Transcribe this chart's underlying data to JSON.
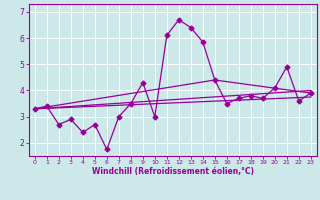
{
  "xlabel": "Windchill (Refroidissement éolien,°C)",
  "bg_color": "#cce8e8",
  "line_color": "#990099",
  "grid_color": "#ffffff",
  "xlim": [
    -0.5,
    23.5
  ],
  "ylim": [
    1.5,
    7.3
  ],
  "yticks": [
    2,
    3,
    4,
    5,
    6,
    7
  ],
  "xticks": [
    0,
    1,
    2,
    3,
    4,
    5,
    6,
    7,
    8,
    9,
    10,
    11,
    12,
    13,
    14,
    15,
    16,
    17,
    18,
    19,
    20,
    21,
    22,
    23
  ],
  "series1_x": [
    0,
    1,
    2,
    3,
    4,
    5,
    6,
    7,
    8,
    9,
    10,
    11,
    12,
    13,
    14,
    15,
    16,
    17,
    18,
    19,
    20,
    21,
    22,
    23
  ],
  "series1_y": [
    3.3,
    3.4,
    2.7,
    2.9,
    2.4,
    2.7,
    1.75,
    3.0,
    3.5,
    4.3,
    3.0,
    6.1,
    6.7,
    6.4,
    5.85,
    4.4,
    3.5,
    3.7,
    3.8,
    3.7,
    4.1,
    4.9,
    3.6,
    3.9
  ],
  "series2_x": [
    0,
    23
  ],
  "series2_y": [
    3.3,
    4.0
  ],
  "series3_x": [
    0,
    23
  ],
  "series3_y": [
    3.3,
    3.75
  ],
  "series4_x": [
    0,
    15,
    23
  ],
  "series4_y": [
    3.3,
    4.4,
    3.9
  ]
}
